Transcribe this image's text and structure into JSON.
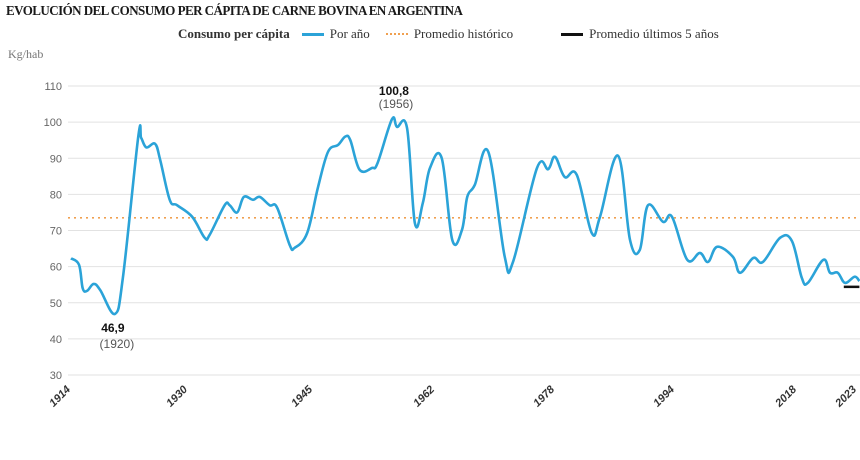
{
  "chart_data": {
    "type": "line",
    "title": "EVOLUCIÓN DEL CONSUMO PER CÁPITA DE CARNE BOVINA EN ARGENTINA",
    "legend_title": "Consumo per cápita",
    "ylabel": "Kg/hab",
    "xlabel": "",
    "ylim": [
      30,
      110
    ],
    "yticks": [
      30,
      40,
      50,
      60,
      70,
      80,
      90,
      100,
      110
    ],
    "xticks": [
      "1914",
      "1930",
      "1945",
      "1962",
      "1978",
      "1994",
      "2018",
      "2023"
    ],
    "grid": true,
    "legend_placement": "top",
    "colors": {
      "per_year": "#2ba3d8",
      "historic_avg": "#f0a050",
      "last5_avg": "#111111",
      "grid": "#e2e2e2"
    },
    "series": [
      {
        "name": "Por año",
        "style": "solid",
        "points": [
          [
            1914,
            62.3
          ],
          [
            1915.1,
            60.5
          ],
          [
            1915.6,
            54
          ],
          [
            1916.2,
            53.3
          ],
          [
            1917.1,
            55.2
          ],
          [
            1918,
            53.5
          ],
          [
            1920,
            46.9
          ],
          [
            1921.1,
            57
          ],
          [
            1923.2,
            96
          ],
          [
            1923.6,
            95.6
          ],
          [
            1924.3,
            93
          ],
          [
            1925.5,
            94
          ],
          [
            1926.2,
            89.5
          ],
          [
            1927.5,
            78.5
          ],
          [
            1928.5,
            77
          ],
          [
            1930.5,
            73.8
          ],
          [
            1932,
            68
          ],
          [
            1932.6,
            68.8
          ],
          [
            1934.4,
            77
          ],
          [
            1935,
            77
          ],
          [
            1935.9,
            75
          ],
          [
            1936.7,
            79.3
          ],
          [
            1937.8,
            78.5
          ],
          [
            1938.6,
            79.3
          ],
          [
            1939.8,
            77
          ],
          [
            1940.7,
            76.3
          ],
          [
            1942.2,
            66
          ],
          [
            1942.8,
            65.2
          ],
          [
            1944.3,
            69.3
          ],
          [
            1945.7,
            82
          ],
          [
            1947.1,
            91.8
          ],
          [
            1948.5,
            93.7
          ],
          [
            1949.5,
            96
          ],
          [
            1950.2,
            95
          ],
          [
            1951.5,
            86.8
          ],
          [
            1953.2,
            87.3
          ],
          [
            1954,
            88.7
          ],
          [
            1956,
            100.8
          ],
          [
            1956.7,
            98.7
          ],
          [
            1958.1,
            98.4
          ],
          [
            1959.2,
            72
          ],
          [
            1960.3,
            77.6
          ],
          [
            1961.3,
            87.3
          ],
          [
            1962.9,
            90
          ],
          [
            1964.3,
            67.4
          ],
          [
            1965.6,
            70.2
          ],
          [
            1966.3,
            79.3
          ],
          [
            1967.3,
            82.6
          ],
          [
            1969.1,
            91.8
          ],
          [
            1971.3,
            62.7
          ],
          [
            1972.4,
            61.3
          ],
          [
            1975.6,
            87.3
          ],
          [
            1977.1,
            87
          ],
          [
            1978,
            90.4
          ],
          [
            1979.3,
            84.8
          ],
          [
            1980.9,
            85.4
          ],
          [
            1982.9,
            69.3
          ],
          [
            1984,
            73.8
          ],
          [
            1986.4,
            90.7
          ],
          [
            1988,
            67.4
          ],
          [
            1989.3,
            64.6
          ],
          [
            1990.4,
            77
          ],
          [
            1992.4,
            72.4
          ],
          [
            1993.6,
            73.8
          ],
          [
            1996.4,
            61.9
          ],
          [
            1998.9,
            63.8
          ],
          [
            2000.5,
            61.3
          ],
          [
            2002.3,
            65.5
          ],
          [
            2005.4,
            62.7
          ],
          [
            2006.8,
            58.3
          ],
          [
            2009.4,
            62.4
          ],
          [
            2011.3,
            61.3
          ],
          [
            2014.7,
            68
          ],
          [
            2017,
            67.1
          ],
          [
            2018.4,
            56.9
          ],
          [
            2018.9,
            55.5
          ],
          [
            2020.2,
            61.9
          ],
          [
            2020.75,
            58.3
          ],
          [
            2021.4,
            58.3
          ],
          [
            2022,
            55.5
          ],
          [
            2022.8,
            57.2
          ],
          [
            2023.2,
            56
          ]
        ]
      },
      {
        "name": "Promedio histórico",
        "style": "dotted",
        "value": 73.5
      },
      {
        "name": "Promedio últimos 5 años",
        "style": "solid",
        "value": 54.4,
        "x_range": [
          2021.9,
          2023.2
        ]
      }
    ],
    "annotations": [
      {
        "value_label": "46,9",
        "year_label": "(1920)",
        "x": 1920,
        "y": 46.9
      },
      {
        "value_label": "100,8",
        "year_label": "(1956)",
        "x": 1956,
        "y": 100.8
      }
    ]
  }
}
